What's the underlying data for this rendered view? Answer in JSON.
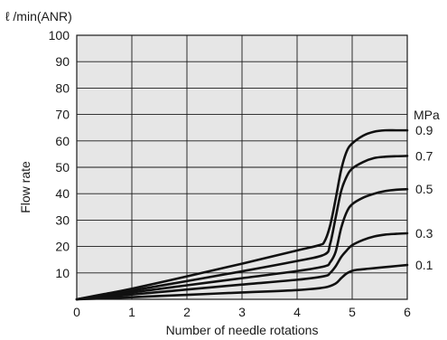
{
  "chart_data": {
    "type": "line",
    "unit_label": "ℓ /min(ANR)",
    "xlabel": "Number of needle rotations",
    "ylabel": "Flow rate",
    "xlim": [
      0,
      6
    ],
    "ylim": [
      0,
      100
    ],
    "x_ticks": [
      "0",
      "1",
      "2",
      "3",
      "4",
      "5",
      "6"
    ],
    "y_ticks": [
      "10",
      "20",
      "30",
      "40",
      "50",
      "60",
      "70",
      "80",
      "90",
      "100"
    ],
    "grid": true,
    "legend_unit": "MPa",
    "series": [
      {
        "name": "0.9",
        "x": [
          0,
          0.5,
          1,
          2,
          3,
          4,
          4.4,
          4.5,
          4.6,
          4.7,
          4.8,
          4.9,
          5.0,
          5.2,
          5.4,
          5.6,
          5.8,
          6.0
        ],
        "y": [
          0,
          2,
          4,
          8.7,
          13.5,
          18.5,
          20.5,
          22,
          28,
          38,
          49,
          56,
          59,
          62,
          63.5,
          64,
          64,
          64
        ]
      },
      {
        "name": "0.7",
        "x": [
          0,
          0.5,
          1,
          2,
          3,
          4,
          4.5,
          4.6,
          4.7,
          4.8,
          4.9,
          5.0,
          5.2,
          5.4,
          5.6,
          5.8,
          6.0
        ],
        "y": [
          0,
          1.7,
          3.3,
          6.9,
          10.6,
          14.5,
          17,
          21,
          31,
          41,
          46.5,
          49.5,
          52,
          53.5,
          54,
          54.2,
          54.3
        ]
      },
      {
        "name": "0.5",
        "x": [
          0,
          0.5,
          1,
          2,
          3,
          4,
          4.5,
          4.6,
          4.7,
          4.8,
          4.9,
          5.0,
          5.2,
          5.4,
          5.6,
          5.8,
          6.0
        ],
        "y": [
          0,
          1.3,
          2.6,
          5.3,
          8,
          10.7,
          12.5,
          14,
          18,
          27,
          33,
          36,
          38.5,
          40,
          41,
          41.5,
          41.7
        ]
      },
      {
        "name": "0.3",
        "x": [
          0,
          0.5,
          1,
          2,
          3,
          4,
          4.5,
          4.6,
          4.7,
          4.8,
          4.9,
          5.0,
          5.2,
          5.4,
          5.6,
          5.8,
          6.0
        ],
        "y": [
          0,
          0.9,
          1.8,
          3.7,
          5.6,
          7.4,
          8.8,
          10,
          12.5,
          16,
          18.5,
          20.5,
          22.5,
          23.8,
          24.5,
          24.8,
          25
        ]
      },
      {
        "name": "0.1",
        "x": [
          0,
          0.5,
          1,
          2,
          3,
          4,
          4.5,
          4.7,
          4.8,
          4.9,
          5.0,
          5.1,
          5.3,
          5.5,
          5.7,
          6.0
        ],
        "y": [
          0,
          0.4,
          0.8,
          1.7,
          2.6,
          3.5,
          4.5,
          6,
          8,
          9.8,
          10.8,
          11.2,
          11.6,
          12,
          12.4,
          13
        ]
      }
    ]
  }
}
